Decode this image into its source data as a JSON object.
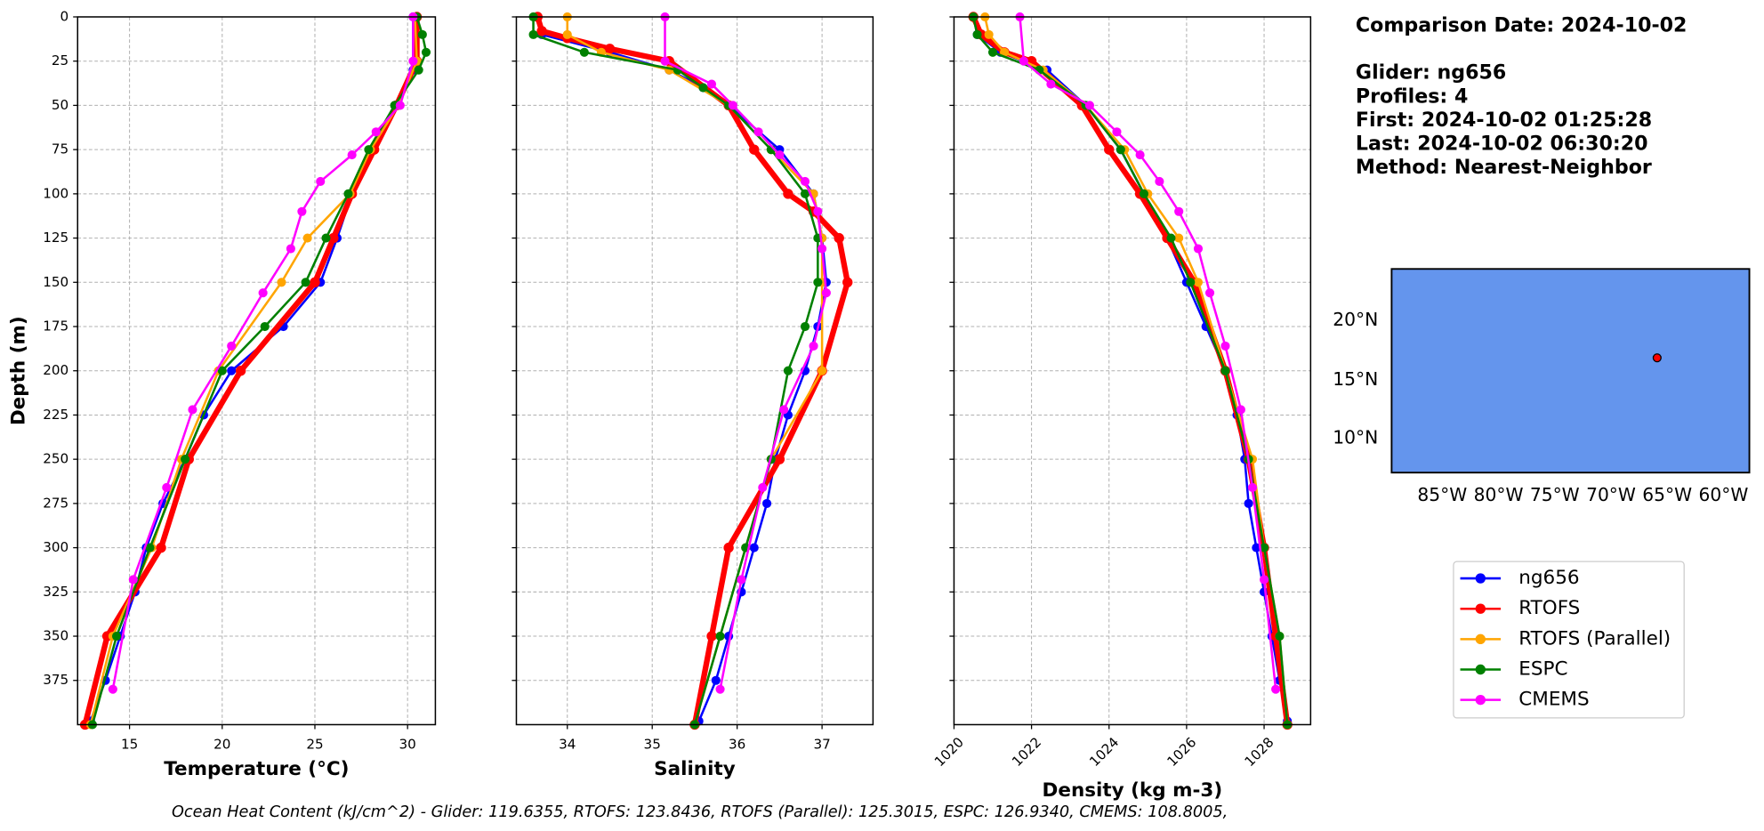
{
  "chart_data": [
    {
      "type": "line",
      "xlabel": "Temperature (°C)",
      "ylabel": "Depth (m)",
      "xlim": [
        12.2,
        31.5
      ],
      "ylim": [
        400,
        0
      ],
      "xticks": [
        15,
        20,
        25,
        30
      ],
      "yticks": [
        0,
        25,
        50,
        75,
        100,
        125,
        150,
        175,
        200,
        225,
        250,
        275,
        300,
        325,
        350,
        375
      ],
      "grid": true,
      "series": [
        {
          "name": "ng656",
          "color": "#0000ff",
          "linewidth": 2,
          "y": [
            0,
            30,
            50,
            75,
            100,
            125,
            150,
            175,
            200,
            225,
            250,
            275,
            300,
            325,
            350,
            375,
            398
          ],
          "x": [
            30.3,
            30.3,
            29.5,
            28.0,
            27.0,
            26.2,
            25.3,
            23.3,
            20.5,
            19.0,
            18.0,
            16.8,
            15.9,
            15.3,
            14.5,
            13.7,
            12.9
          ]
        },
        {
          "name": "RTOFS",
          "color": "#ff0000",
          "linewidth": 5,
          "y": [
            0,
            25,
            50,
            75,
            100,
            125,
            150,
            200,
            250,
            300,
            350,
            400
          ],
          "x": [
            30.5,
            30.5,
            29.4,
            28.2,
            27.0,
            26.0,
            25.0,
            21.0,
            18.2,
            16.7,
            13.8,
            12.6
          ]
        },
        {
          "name": "RTOFS (Parallel)",
          "color": "#ffa500",
          "linewidth": 2,
          "y": [
            0,
            25,
            50,
            75,
            100,
            125,
            150,
            200,
            250,
            300,
            350,
            400
          ],
          "x": [
            30.4,
            30.5,
            29.5,
            28.0,
            26.9,
            24.6,
            23.2,
            19.8,
            17.8,
            16.2,
            14.1,
            12.9
          ]
        },
        {
          "name": "ESPC",
          "color": "#008000",
          "linewidth": 2,
          "y": [
            0,
            10,
            20,
            30,
            50,
            75,
            100,
            125,
            150,
            175,
            200,
            250,
            300,
            350,
            400
          ],
          "x": [
            30.5,
            30.8,
            31.0,
            30.6,
            29.3,
            27.9,
            26.8,
            25.6,
            24.5,
            22.3,
            20.0,
            18.0,
            16.1,
            14.3,
            13.0
          ]
        },
        {
          "name": "CMEMS",
          "color": "#ff00ff",
          "linewidth": 2,
          "y": [
            0,
            25,
            50,
            65,
            78,
            93,
            110,
            131,
            156,
            186,
            222,
            266,
            318,
            380
          ],
          "x": [
            30.3,
            30.3,
            29.6,
            28.3,
            27.0,
            25.3,
            24.3,
            23.7,
            22.2,
            20.5,
            18.4,
            17.0,
            15.2,
            14.1
          ]
        }
      ]
    },
    {
      "type": "line",
      "xlabel": "Salinity",
      "xlim": [
        33.4,
        37.6
      ],
      "ylim": [
        400,
        0
      ],
      "xticks": [
        34,
        35,
        36,
        37
      ],
      "yticks": [
        0,
        25,
        50,
        75,
        100,
        125,
        150,
        175,
        200,
        225,
        250,
        275,
        300,
        325,
        350,
        375
      ],
      "grid": true,
      "series": [
        {
          "color": "#0000ff",
          "linewidth": 2,
          "y": [
            0,
            10,
            20,
            30,
            40,
            50,
            75,
            100,
            125,
            150,
            175,
            200,
            225,
            250,
            275,
            300,
            325,
            350,
            375,
            398
          ],
          "x": [
            33.65,
            33.7,
            34.5,
            35.2,
            35.6,
            35.9,
            36.5,
            36.9,
            37.0,
            37.05,
            36.95,
            36.8,
            36.6,
            36.45,
            36.35,
            36.2,
            36.05,
            35.9,
            35.75,
            35.55
          ]
        },
        {
          "color": "#ff0000",
          "linewidth": 5,
          "y": [
            0,
            8,
            12,
            18,
            25,
            50,
            75,
            100,
            110,
            125,
            150,
            200,
            250,
            300,
            350,
            400
          ],
          "x": [
            33.65,
            33.7,
            34.0,
            34.5,
            35.2,
            35.9,
            36.2,
            36.6,
            36.9,
            37.2,
            37.3,
            37.0,
            36.5,
            35.9,
            35.7,
            35.5
          ]
        },
        {
          "color": "#ffa500",
          "linewidth": 2,
          "y": [
            0,
            10,
            20,
            30,
            50,
            75,
            100,
            125,
            150,
            200,
            250,
            300,
            350,
            400
          ],
          "x": [
            34.0,
            34.0,
            34.4,
            35.2,
            35.9,
            36.4,
            36.9,
            37.0,
            37.0,
            37.0,
            36.4,
            36.1,
            35.8,
            35.5
          ]
        },
        {
          "color": "#008000",
          "linewidth": 2,
          "y": [
            0,
            10,
            20,
            30,
            40,
            50,
            75,
            100,
            125,
            150,
            175,
            200,
            250,
            300,
            350,
            400
          ],
          "x": [
            33.6,
            33.6,
            34.2,
            35.3,
            35.6,
            35.9,
            36.4,
            36.8,
            36.95,
            36.95,
            36.8,
            36.6,
            36.4,
            36.1,
            35.8,
            35.5
          ]
        },
        {
          "color": "#ff00ff",
          "linewidth": 2,
          "y": [
            0,
            25,
            38,
            50,
            65,
            78,
            93,
            110,
            131,
            156,
            186,
            222,
            266,
            318,
            380
          ],
          "x": [
            35.15,
            35.15,
            35.7,
            35.95,
            36.25,
            36.5,
            36.8,
            36.95,
            37.0,
            37.05,
            36.9,
            36.55,
            36.3,
            36.05,
            35.8
          ]
        }
      ]
    },
    {
      "type": "line",
      "xlabel": "Density (kg m-3)",
      "xlim": [
        1020,
        1029.2
      ],
      "ylim": [
        400,
        0
      ],
      "xticks": [
        1020,
        1022,
        1024,
        1026,
        1028
      ],
      "yticks": [
        0,
        25,
        50,
        75,
        100,
        125,
        150,
        175,
        200,
        225,
        250,
        275,
        300,
        325,
        350,
        375
      ],
      "grid": true,
      "series": [
        {
          "color": "#0000ff",
          "linewidth": 2,
          "y": [
            0,
            10,
            20,
            30,
            50,
            75,
            100,
            125,
            150,
            175,
            200,
            225,
            250,
            275,
            300,
            325,
            350,
            375,
            398
          ],
          "x": [
            1020.5,
            1020.6,
            1021.2,
            1022.4,
            1023.4,
            1024.3,
            1024.9,
            1025.5,
            1026.0,
            1026.5,
            1027.0,
            1027.3,
            1027.5,
            1027.6,
            1027.8,
            1028.0,
            1028.2,
            1028.4,
            1028.6
          ]
        },
        {
          "color": "#ff0000",
          "linewidth": 5,
          "y": [
            0,
            10,
            20,
            25,
            50,
            75,
            100,
            125,
            150,
            200,
            250,
            300,
            350,
            400
          ],
          "x": [
            1020.5,
            1020.7,
            1021.3,
            1022.0,
            1023.3,
            1024.0,
            1024.8,
            1025.5,
            1026.2,
            1027.0,
            1027.6,
            1028.0,
            1028.3,
            1028.6
          ]
        },
        {
          "color": "#ffa500",
          "linewidth": 2,
          "y": [
            0,
            10,
            20,
            30,
            50,
            75,
            100,
            125,
            150,
            200,
            250,
            300,
            350,
            400
          ],
          "x": [
            1020.8,
            1020.9,
            1021.3,
            1022.3,
            1023.4,
            1024.4,
            1025.0,
            1025.8,
            1026.3,
            1027.0,
            1027.7,
            1028.0,
            1028.4,
            1028.6
          ]
        },
        {
          "color": "#008000",
          "linewidth": 2,
          "y": [
            0,
            10,
            20,
            30,
            50,
            75,
            100,
            125,
            150,
            200,
            250,
            300,
            350,
            400
          ],
          "x": [
            1020.5,
            1020.6,
            1021.0,
            1022.2,
            1023.4,
            1024.3,
            1024.9,
            1025.6,
            1026.1,
            1027.0,
            1027.6,
            1028.0,
            1028.4,
            1028.6
          ]
        },
        {
          "color": "#ff00ff",
          "linewidth": 2,
          "y": [
            0,
            25,
            38,
            50,
            65,
            78,
            93,
            110,
            131,
            156,
            186,
            222,
            266,
            318,
            380
          ],
          "x": [
            1021.7,
            1021.8,
            1022.5,
            1023.5,
            1024.2,
            1024.8,
            1025.3,
            1025.8,
            1026.3,
            1026.6,
            1027.0,
            1027.4,
            1027.7,
            1028.0,
            1028.3
          ]
        }
      ]
    }
  ],
  "info": [
    "Comparison Date: 2024-10-02",
    "Glider: ng656",
    "Profiles: 4",
    "First: 2024-10-02 01:25:28",
    "Last: 2024-10-02 06:30:20",
    "Method: Nearest-Neighbor"
  ],
  "map": {
    "lat_labels": [
      "20°N",
      "15°N",
      "10°N"
    ],
    "lon_labels": [
      "85°W",
      "80°W",
      "75°W",
      "70°W",
      "65°W",
      "60°W"
    ]
  },
  "footer": "Ocean Heat Content (kJ/cm^2) - Glider: 119.6355,  RTOFS: 123.8436,  RTOFS (Parallel): 125.3015,  ESPC: 126.9340,  CMEMS: 108.8005,"
}
